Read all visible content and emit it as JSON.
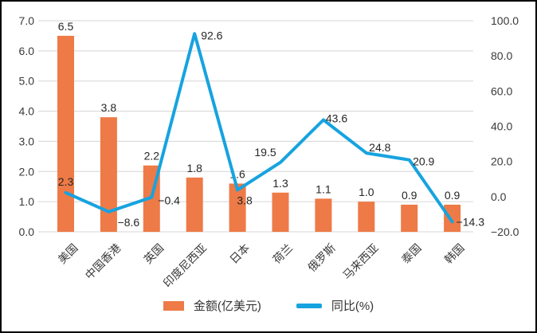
{
  "chart_data": {
    "type": "bar",
    "subtype": "combo-bar-line-dual-axis",
    "title": "",
    "categories": [
      "美国",
      "中国香港",
      "英国",
      "印度尼西亚",
      "日本",
      "荷兰",
      "俄罗斯",
      "马来西亚",
      "泰国",
      "韩国"
    ],
    "series": [
      {
        "name": "金额(亿美元)",
        "type": "bar",
        "axis": "left",
        "color": "#EE7A47",
        "values": [
          6.5,
          3.8,
          2.2,
          1.8,
          1.6,
          1.3,
          1.1,
          1.0,
          0.9,
          0.9
        ],
        "value_labels": [
          "6.5",
          "3.8",
          "2.2",
          "1.8",
          "1.6",
          "1.3",
          "1.1",
          "1.0",
          "0.9",
          "0.9"
        ]
      },
      {
        "name": "同比(%)",
        "type": "line",
        "axis": "right",
        "color": "#17A3DF",
        "values": [
          2.3,
          -8.6,
          -0.4,
          92.6,
          3.8,
          19.5,
          43.6,
          24.8,
          20.9,
          -14.3
        ],
        "value_labels": [
          "2.3",
          "−8.6",
          "−0.4",
          "92.6",
          "3.8",
          "19.5",
          "43.6",
          "24.8",
          "20.9",
          "−14.3"
        ],
        "label_offsets": [
          [
            0,
            -9,
            "middle"
          ],
          [
            25,
            18,
            "middle"
          ],
          [
            8,
            9,
            "start"
          ],
          [
            8,
            7,
            "start"
          ],
          [
            9,
            18,
            "middle"
          ],
          [
            -19,
            -8,
            "middle"
          ],
          [
            3,
            3,
            "start"
          ],
          [
            17,
            -2,
            "middle"
          ],
          [
            18,
            7,
            "middle"
          ],
          [
            5,
            5,
            "start"
          ]
        ]
      }
    ],
    "left_axis": {
      "min": 0,
      "max": 7,
      "step": 1,
      "tick_labels": [
        "7.0",
        "6.0",
        "5.0",
        "4.0",
        "3.0",
        "2.0",
        "1.0",
        "0.0"
      ]
    },
    "right_axis": {
      "min": -20,
      "max": 100,
      "step": 20,
      "tick_labels": [
        "100.0",
        "80.0",
        "60.0",
        "40.0",
        "20.0",
        "0.0",
        "−20.0"
      ]
    },
    "grid": true,
    "gridline_color": "#D6D6D6",
    "tick_label_color": "#3A3A3A",
    "data_label_color": "#262626",
    "legend_position": "bottom"
  },
  "legend": {
    "bar_label": "金额(亿美元)",
    "line_label": "同比(%)"
  }
}
